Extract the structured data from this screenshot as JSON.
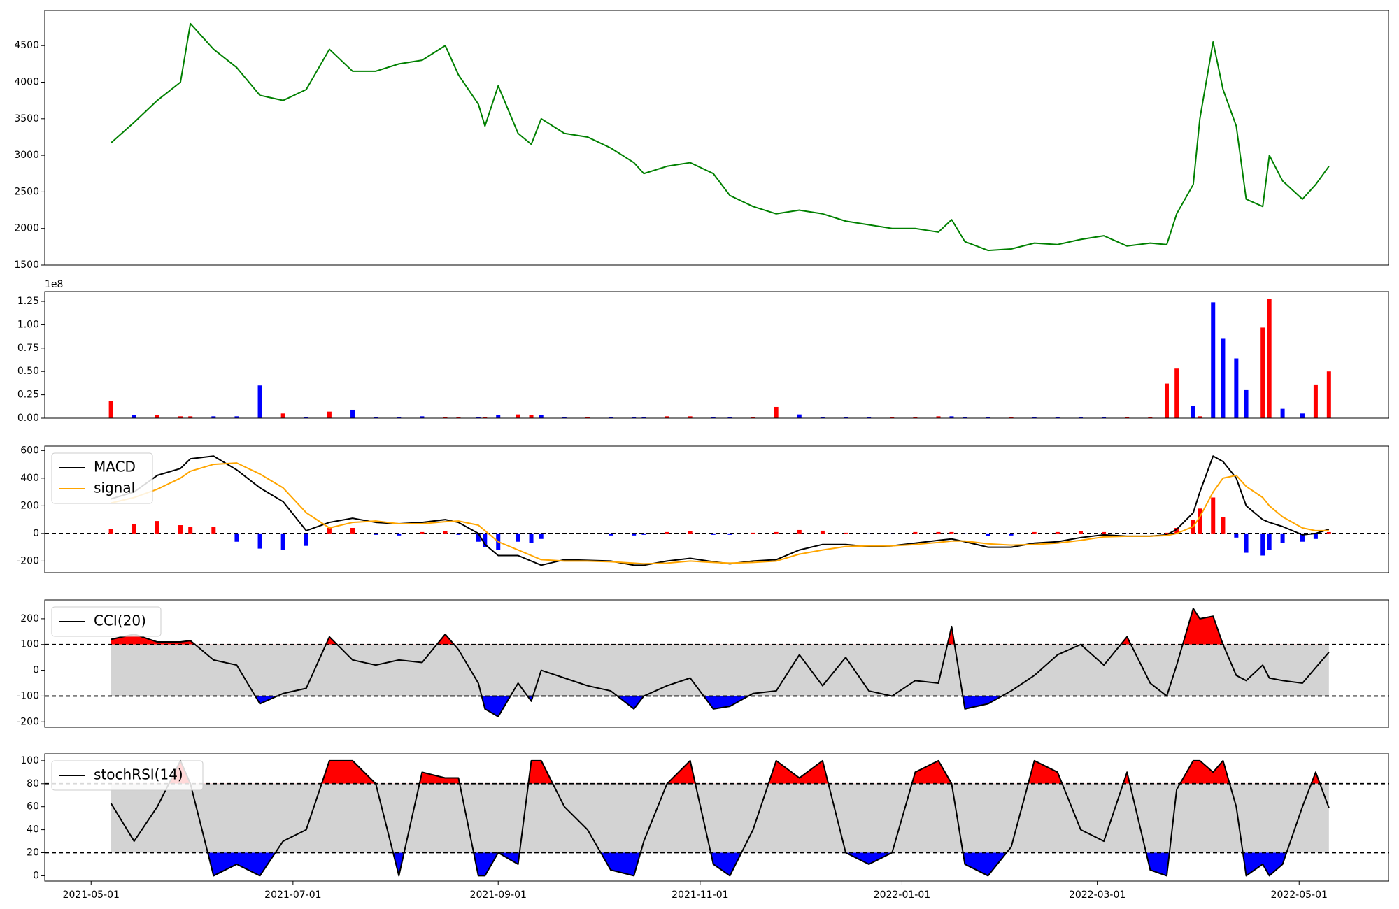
{
  "chart_data": [
    {
      "type": "line",
      "color": "green",
      "x": [
        "2021-05-07",
        "2021-05-14",
        "2021-05-21",
        "2021-05-28",
        "2021-05-31",
        "2021-06-07",
        "2021-06-14",
        "2021-06-21",
        "2021-06-28",
        "2021-07-05",
        "2021-07-12",
        "2021-07-19",
        "2021-07-26",
        "2021-08-02",
        "2021-08-09",
        "2021-08-16",
        "2021-08-20",
        "2021-08-26",
        "2021-08-28",
        "2021-09-01",
        "2021-09-07",
        "2021-09-11",
        "2021-09-14",
        "2021-09-21",
        "2021-09-28",
        "2021-10-05",
        "2021-10-12",
        "2021-10-15",
        "2021-10-22",
        "2021-10-29",
        "2021-11-05",
        "2021-11-10",
        "2021-11-17",
        "2021-11-24",
        "2021-12-01",
        "2021-12-08",
        "2021-12-15",
        "2021-12-22",
        "2021-12-29",
        "2022-01-05",
        "2022-01-12",
        "2022-01-16",
        "2022-01-20",
        "2022-01-27",
        "2022-02-03",
        "2022-02-10",
        "2022-02-17",
        "2022-02-24",
        "2022-03-03",
        "2022-03-10",
        "2022-03-17",
        "2022-03-22",
        "2022-03-25",
        "2022-03-30",
        "2022-04-01",
        "2022-04-05",
        "2022-04-08",
        "2022-04-12",
        "2022-04-15",
        "2022-04-20",
        "2022-04-22",
        "2022-04-26",
        "2022-05-02",
        "2022-05-06",
        "2022-05-10"
      ],
      "values": [
        3170,
        3450,
        3750,
        4000,
        4800,
        4450,
        4200,
        3820,
        3750,
        3900,
        4450,
        4150,
        4150,
        4250,
        4300,
        4500,
        4100,
        3700,
        3400,
        3950,
        3300,
        3150,
        3500,
        3300,
        3250,
        3100,
        2900,
        2750,
        2850,
        2900,
        2750,
        2450,
        2300,
        2200,
        2250,
        2200,
        2100,
        2050,
        2000,
        2000,
        1950,
        2120,
        1820,
        1700,
        1720,
        1800,
        1780,
        1850,
        1900,
        1760,
        1800,
        1780,
        2200,
        2600,
        3500,
        4550,
        3900,
        3400,
        2400,
        2300,
        3000,
        2650,
        2400,
        2600,
        2850
      ],
      "xlim": [
        "2021-04-17",
        "2022-05-28"
      ],
      "ylim": [
        1500,
        4980
      ],
      "yticks": [
        1500,
        2000,
        2500,
        3000,
        3500,
        4000,
        4500
      ]
    },
    {
      "type": "bar",
      "offset_label": "1e8",
      "x": [
        "2021-05-07",
        "2021-05-14",
        "2021-05-21",
        "2021-05-28",
        "2021-05-31",
        "2021-06-07",
        "2021-06-14",
        "2021-06-21",
        "2021-06-28",
        "2021-07-05",
        "2021-07-12",
        "2021-07-19",
        "2021-07-26",
        "2021-08-02",
        "2021-08-09",
        "2021-08-16",
        "2021-08-20",
        "2021-08-26",
        "2021-08-28",
        "2021-09-01",
        "2021-09-07",
        "2021-09-11",
        "2021-09-14",
        "2021-09-21",
        "2021-09-28",
        "2021-10-05",
        "2021-10-12",
        "2021-10-15",
        "2021-10-22",
        "2021-10-29",
        "2021-11-05",
        "2021-11-10",
        "2021-11-17",
        "2021-11-24",
        "2021-12-01",
        "2021-12-08",
        "2021-12-15",
        "2021-12-22",
        "2021-12-29",
        "2022-01-05",
        "2022-01-12",
        "2022-01-16",
        "2022-01-20",
        "2022-01-27",
        "2022-02-03",
        "2022-02-10",
        "2022-02-17",
        "2022-02-24",
        "2022-03-03",
        "2022-03-10",
        "2022-03-17",
        "2022-03-22",
        "2022-03-25",
        "2022-03-30",
        "2022-04-01",
        "2022-04-05",
        "2022-04-08",
        "2022-04-12",
        "2022-04-15",
        "2022-04-20",
        "2022-04-22",
        "2022-04-26",
        "2022-05-02",
        "2022-05-06",
        "2022-05-10"
      ],
      "values": [
        0.18,
        0.03,
        0.03,
        0.02,
        0.02,
        0.02,
        0.02,
        0.35,
        0.05,
        0.01,
        0.07,
        0.09,
        0.01,
        0.01,
        0.02,
        0.01,
        0.01,
        0.01,
        0.01,
        0.03,
        0.04,
        0.03,
        0.03,
        0.01,
        0.01,
        0.01,
        0.01,
        0.01,
        0.02,
        0.02,
        0.01,
        0.01,
        0.01,
        0.12,
        0.04,
        0.01,
        0.01,
        0.01,
        0.01,
        0.01,
        0.02,
        0.02,
        0.01,
        0.01,
        0.01,
        0.01,
        0.01,
        0.01,
        0.01,
        0.01,
        0.01,
        0.37,
        0.53,
        0.13,
        0.02,
        1.24,
        0.85,
        0.64,
        0.3,
        0.97,
        1.28,
        0.1,
        0.05,
        0.36,
        0.5
      ],
      "colors": [
        "red",
        "blue",
        "red",
        "red",
        "red",
        "blue",
        "blue",
        "blue",
        "red",
        "blue",
        "red",
        "blue",
        "blue",
        "blue",
        "blue",
        "red",
        "red",
        "blue",
        "red",
        "blue",
        "red",
        "red",
        "blue",
        "blue",
        "red",
        "blue",
        "blue",
        "blue",
        "red",
        "red",
        "blue",
        "blue",
        "red",
        "red",
        "blue",
        "blue",
        "blue",
        "blue",
        "red",
        "red",
        "red",
        "blue",
        "blue",
        "blue",
        "red",
        "blue",
        "blue",
        "blue",
        "blue",
        "red",
        "red",
        "red",
        "red",
        "blue",
        "red",
        "blue",
        "blue",
        "blue",
        "blue",
        "red",
        "red",
        "blue",
        "blue",
        "red",
        "red"
      ],
      "xlim": [
        "2021-04-17",
        "2022-05-28"
      ],
      "ylim": [
        0,
        1.355
      ],
      "yticks": [
        {
          "value": 0,
          "label": "0.00"
        },
        0.25,
        {
          "value": 0.5,
          "label": "0.50"
        },
        0.75,
        {
          "value": 1,
          "label": "1.00"
        },
        1.25
      ]
    },
    {
      "type": "macd",
      "legend": "upper left",
      "levels": [
        0
      ],
      "histogram_colors": [
        "red",
        "blue"
      ],
      "x": [
        "2021-05-07",
        "2021-05-14",
        "2021-05-21",
        "2021-05-28",
        "2021-05-31",
        "2021-06-07",
        "2021-06-14",
        "2021-06-21",
        "2021-06-28",
        "2021-07-05",
        "2021-07-12",
        "2021-07-19",
        "2021-07-26",
        "2021-08-02",
        "2021-08-09",
        "2021-08-16",
        "2021-08-20",
        "2021-08-26",
        "2021-08-28",
        "2021-09-01",
        "2021-09-07",
        "2021-09-11",
        "2021-09-14",
        "2021-09-21",
        "2021-09-28",
        "2021-10-05",
        "2021-10-12",
        "2021-10-15",
        "2021-10-22",
        "2021-10-29",
        "2021-11-05",
        "2021-11-10",
        "2021-11-17",
        "2021-11-24",
        "2021-12-01",
        "2021-12-08",
        "2021-12-15",
        "2021-12-22",
        "2021-12-29",
        "2022-01-05",
        "2022-01-12",
        "2022-01-16",
        "2022-01-20",
        "2022-01-27",
        "2022-02-03",
        "2022-02-10",
        "2022-02-17",
        "2022-02-24",
        "2022-03-03",
        "2022-03-10",
        "2022-03-17",
        "2022-03-22",
        "2022-03-25",
        "2022-03-30",
        "2022-04-01",
        "2022-04-05",
        "2022-04-08",
        "2022-04-12",
        "2022-04-15",
        "2022-04-20",
        "2022-04-22",
        "2022-04-26",
        "2022-05-02",
        "2022-05-06",
        "2022-05-10"
      ],
      "series": [
        {
          "name": "MACD",
          "color": "black",
          "values": [
            250,
            300,
            420,
            470,
            540,
            560,
            460,
            330,
            230,
            20,
            80,
            110,
            80,
            70,
            80,
            100,
            80,
            0,
            -80,
            -160,
            -160,
            -200,
            -230,
            -190,
            -195,
            -200,
            -230,
            -230,
            -200,
            -180,
            -205,
            -220,
            -200,
            -190,
            -120,
            -80,
            -80,
            -95,
            -90,
            -70,
            -50,
            -40,
            -60,
            -100,
            -100,
            -70,
            -60,
            -30,
            -10,
            -20,
            -20,
            -10,
            30,
            150,
            300,
            560,
            520,
            400,
            200,
            100,
            80,
            50,
            -10,
            0,
            30
          ]
        },
        {
          "name": "signal",
          "color": "orange",
          "values": [
            220,
            260,
            320,
            400,
            450,
            500,
            510,
            430,
            330,
            150,
            40,
            80,
            90,
            70,
            70,
            85,
            90,
            60,
            20,
            -60,
            -120,
            -160,
            -190,
            -200,
            -200,
            -205,
            -215,
            -220,
            -215,
            -200,
            -210,
            -215,
            -210,
            -200,
            -150,
            -120,
            -95,
            -90,
            -90,
            -80,
            -65,
            -55,
            -55,
            -75,
            -85,
            -80,
            -70,
            -50,
            -25,
            -20,
            -20,
            -15,
            0,
            50,
            120,
            300,
            400,
            420,
            340,
            260,
            200,
            120,
            40,
            20,
            20
          ]
        }
      ],
      "histogram": [
        30,
        70,
        90,
        60,
        50,
        50,
        -60,
        -110,
        -120,
        -90,
        40,
        40,
        -10,
        -15,
        10,
        15,
        -10,
        -60,
        -100,
        -120,
        -60,
        -70,
        -40,
        0,
        0,
        -15,
        -15,
        -10,
        10,
        15,
        -10,
        -10,
        5,
        10,
        25,
        20,
        5,
        -5,
        -5,
        10,
        10,
        10,
        -5,
        -20,
        -15,
        10,
        10,
        15,
        10,
        -5,
        0,
        5,
        40,
        100,
        180,
        260,
        120,
        -30,
        -140,
        -160,
        -120,
        -70,
        -60,
        -40,
        10
      ],
      "xlim": [
        "2021-04-17",
        "2022-05-28"
      ],
      "ylim": [
        -284,
        632
      ],
      "yticks": [
        -200,
        0,
        200,
        400,
        600
      ]
    },
    {
      "type": "oscillator",
      "legend": "upper left",
      "levels": [
        -100,
        100
      ],
      "above_color": "red",
      "below_color": "blue",
      "band_color": "lightgray",
      "x": [
        "2021-05-07",
        "2021-05-14",
        "2021-05-21",
        "2021-05-28",
        "2021-05-31",
        "2021-06-07",
        "2021-06-14",
        "2021-06-21",
        "2021-06-28",
        "2021-07-05",
        "2021-07-12",
        "2021-07-19",
        "2021-07-26",
        "2021-08-02",
        "2021-08-09",
        "2021-08-16",
        "2021-08-20",
        "2021-08-26",
        "2021-08-28",
        "2021-09-01",
        "2021-09-07",
        "2021-09-11",
        "2021-09-14",
        "2021-09-21",
        "2021-09-28",
        "2021-10-05",
        "2021-10-12",
        "2021-10-15",
        "2021-10-22",
        "2021-10-29",
        "2021-11-05",
        "2021-11-10",
        "2021-11-17",
        "2021-11-24",
        "2021-12-01",
        "2021-12-08",
        "2021-12-15",
        "2021-12-22",
        "2021-12-29",
        "2022-01-05",
        "2022-01-12",
        "2022-01-16",
        "2022-01-20",
        "2022-01-27",
        "2022-02-03",
        "2022-02-10",
        "2022-02-17",
        "2022-02-24",
        "2022-03-03",
        "2022-03-10",
        "2022-03-17",
        "2022-03-22",
        "2022-03-25",
        "2022-03-30",
        "2022-04-01",
        "2022-04-05",
        "2022-04-08",
        "2022-04-12",
        "2022-04-15",
        "2022-04-20",
        "2022-04-22",
        "2022-04-26",
        "2022-05-02",
        "2022-05-06",
        "2022-05-10"
      ],
      "series": [
        {
          "name": "CCI(20)",
          "color": "black",
          "values": [
            120,
            140,
            110,
            110,
            115,
            40,
            20,
            -130,
            -90,
            -70,
            130,
            40,
            20,
            40,
            30,
            140,
            80,
            -50,
            -150,
            -180,
            -50,
            -120,
            0,
            -30,
            -60,
            -80,
            -150,
            -100,
            -60,
            -30,
            -150,
            -140,
            -90,
            -80,
            60,
            -60,
            50,
            -80,
            -100,
            -40,
            -50,
            170,
            -150,
            -130,
            -80,
            -20,
            60,
            100,
            20,
            130,
            -50,
            -100,
            20,
            240,
            200,
            210,
            100,
            -20,
            -40,
            20,
            -30,
            -40,
            -50,
            10,
            70
          ]
        }
      ],
      "xlim": [
        "2021-04-17",
        "2022-05-28"
      ],
      "ylim": [
        -221,
        273
      ],
      "yticks": [
        -200,
        -100,
        0,
        100,
        200
      ]
    },
    {
      "type": "oscillator",
      "legend": "upper left",
      "levels": [
        20,
        80
      ],
      "above_color": "red",
      "below_color": "blue",
      "band_color": "lightgray",
      "x": [
        "2021-05-07",
        "2021-05-14",
        "2021-05-21",
        "2021-05-28",
        "2021-05-31",
        "2021-06-07",
        "2021-06-14",
        "2021-06-21",
        "2021-06-28",
        "2021-07-05",
        "2021-07-12",
        "2021-07-19",
        "2021-07-26",
        "2021-08-02",
        "2021-08-09",
        "2021-08-16",
        "2021-08-20",
        "2021-08-26",
        "2021-08-28",
        "2021-09-01",
        "2021-09-07",
        "2021-09-11",
        "2021-09-14",
        "2021-09-21",
        "2021-09-28",
        "2021-10-05",
        "2021-10-12",
        "2021-10-15",
        "2021-10-22",
        "2021-10-29",
        "2021-11-05",
        "2021-11-10",
        "2021-11-17",
        "2021-11-24",
        "2021-12-01",
        "2021-12-08",
        "2021-12-15",
        "2021-12-22",
        "2021-12-29",
        "2022-01-05",
        "2022-01-12",
        "2022-01-16",
        "2022-01-20",
        "2022-01-27",
        "2022-02-03",
        "2022-02-10",
        "2022-02-17",
        "2022-02-24",
        "2022-03-03",
        "2022-03-10",
        "2022-03-17",
        "2022-03-22",
        "2022-03-25",
        "2022-03-30",
        "2022-04-01",
        "2022-04-05",
        "2022-04-08",
        "2022-04-12",
        "2022-04-15",
        "2022-04-20",
        "2022-04-22",
        "2022-04-26",
        "2022-05-02",
        "2022-05-06",
        "2022-05-10"
      ],
      "series": [
        {
          "name": "stochRSI(14)",
          "color": "black",
          "values": [
            63,
            30,
            60,
            100,
            80,
            0,
            10,
            0,
            30,
            40,
            100,
            100,
            80,
            0,
            90,
            85,
            85,
            0,
            0,
            20,
            10,
            100,
            100,
            60,
            40,
            5,
            0,
            30,
            80,
            100,
            10,
            0,
            40,
            100,
            85,
            100,
            20,
            10,
            20,
            90,
            100,
            80,
            10,
            0,
            25,
            100,
            90,
            40,
            30,
            90,
            5,
            0,
            75,
            100,
            100,
            90,
            100,
            60,
            0,
            10,
            0,
            10,
            60,
            90,
            59
          ]
        }
      ],
      "xlim": [
        "2021-04-17",
        "2022-05-28"
      ],
      "ylim": [
        -4.6,
        106
      ],
      "yticks": [
        0,
        20,
        40,
        60,
        80,
        100
      ],
      "xticks": [
        "2021-05-01",
        "2021-07-01",
        "2021-09-01",
        "2021-11-01",
        "2022-01-01",
        "2022-03-01",
        "2022-05-01"
      ]
    }
  ]
}
